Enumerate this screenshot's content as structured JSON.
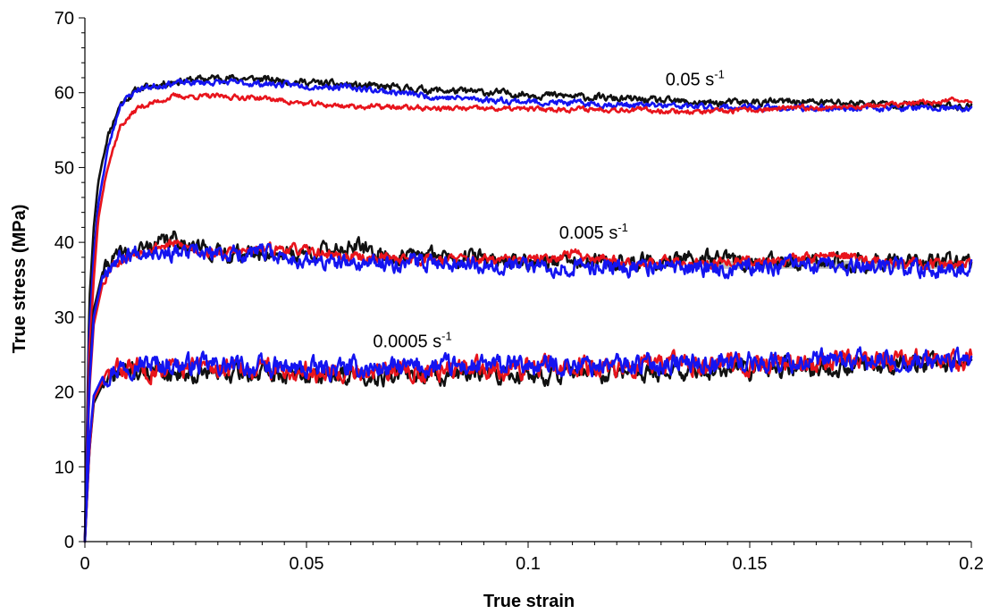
{
  "chart_data": {
    "type": "line",
    "title": "",
    "xlabel": "True strain",
    "ylabel": "True stress (MPa)",
    "xlim": [
      0,
      0.2
    ],
    "ylim": [
      0,
      70
    ],
    "x_ticks": [
      "0",
      "0.05",
      "0.1",
      "0.15",
      "0.2"
    ],
    "y_ticks": [
      "0",
      "10",
      "20",
      "30",
      "40",
      "50",
      "60",
      "70"
    ],
    "grid": false,
    "legend": "none",
    "colors": {
      "black": "#111111",
      "red": "#e8141c",
      "blue": "#1414f0",
      "gray": "#bfbfbf"
    },
    "annotations": [
      {
        "base": "0.05 s",
        "sup": "-1",
        "x": 0.131,
        "y": 61.0
      },
      {
        "base": "0.005 s",
        "sup": "-1",
        "x": 0.107,
        "y": 40.5
      },
      {
        "base": "0.0005 s",
        "sup": "-1",
        "x": 0.065,
        "y": 26.0
      }
    ],
    "groups": [
      {
        "rate": "0.05 s-1",
        "series": [
          {
            "color": "black",
            "noise": 0.35,
            "seed": 11,
            "points": [
              [
                0,
                0
              ],
              [
                0.001,
                32
              ],
              [
                0.002,
                42
              ],
              [
                0.003,
                48
              ],
              [
                0.005,
                54
              ],
              [
                0.008,
                58.5
              ],
              [
                0.012,
                60.5
              ],
              [
                0.02,
                61.5
              ],
              [
                0.03,
                62
              ],
              [
                0.04,
                61.8
              ],
              [
                0.06,
                61
              ],
              [
                0.08,
                60.3
              ],
              [
                0.1,
                59.8
              ],
              [
                0.12,
                59.2
              ],
              [
                0.14,
                58.6
              ],
              [
                0.16,
                58.8
              ],
              [
                0.18,
                58.5
              ],
              [
                0.2,
                58.2
              ]
            ]
          },
          {
            "color": "blue",
            "noise": 0.3,
            "seed": 23,
            "points": [
              [
                0,
                0
              ],
              [
                0.001,
                28
              ],
              [
                0.002,
                38
              ],
              [
                0.003,
                45
              ],
              [
                0.005,
                52
              ],
              [
                0.008,
                58.5
              ],
              [
                0.012,
                60.5
              ],
              [
                0.02,
                61.3
              ],
              [
                0.03,
                61.4
              ],
              [
                0.04,
                61.2
              ],
              [
                0.06,
                60.7
              ],
              [
                0.08,
                59.4
              ],
              [
                0.1,
                58.8
              ],
              [
                0.12,
                58.4
              ],
              [
                0.14,
                58.1
              ],
              [
                0.16,
                57.9
              ],
              [
                0.18,
                58
              ],
              [
                0.2,
                57.8
              ]
            ]
          },
          {
            "color": "red",
            "noise": 0.25,
            "seed": 37,
            "points": [
              [
                0,
                0
              ],
              [
                0.001,
                25
              ],
              [
                0.002,
                35
              ],
              [
                0.003,
                43
              ],
              [
                0.005,
                50
              ],
              [
                0.008,
                55.5
              ],
              [
                0.012,
                58
              ],
              [
                0.02,
                59.5
              ],
              [
                0.03,
                59.5
              ],
              [
                0.04,
                59.3
              ],
              [
                0.05,
                58.5
              ],
              [
                0.06,
                58.2
              ],
              [
                0.08,
                57.9
              ],
              [
                0.1,
                57.8
              ],
              [
                0.12,
                57.8
              ],
              [
                0.14,
                57.4
              ],
              [
                0.16,
                57.9
              ],
              [
                0.18,
                58.3
              ],
              [
                0.2,
                59.1
              ]
            ]
          }
        ]
      },
      {
        "rate": "0.005 s-1",
        "series": [
          {
            "color": "black",
            "noise": 0.8,
            "seed": 41,
            "points": [
              [
                0,
                0
              ],
              [
                0.001,
                22
              ],
              [
                0.002,
                31
              ],
              [
                0.004,
                36
              ],
              [
                0.006,
                37.8
              ],
              [
                0.01,
                38.5
              ],
              [
                0.015,
                39.5
              ],
              [
                0.02,
                40.5
              ],
              [
                0.025,
                39.5
              ],
              [
                0.03,
                38.5
              ],
              [
                0.05,
                38.5
              ],
              [
                0.06,
                39.5
              ],
              [
                0.07,
                38
              ],
              [
                0.08,
                38.3
              ],
              [
                0.1,
                37.5
              ],
              [
                0.12,
                37.2
              ],
              [
                0.14,
                37.8
              ],
              [
                0.16,
                37
              ],
              [
                0.18,
                37.5
              ],
              [
                0.2,
                37.2
              ]
            ]
          },
          {
            "color": "red",
            "noise": 0.5,
            "seed": 53,
            "points": [
              [
                0,
                0
              ],
              [
                0.001,
                20
              ],
              [
                0.002,
                29
              ],
              [
                0.004,
                34.5
              ],
              [
                0.006,
                37
              ],
              [
                0.01,
                38.2
              ],
              [
                0.015,
                39.3
              ],
              [
                0.02,
                39.8
              ],
              [
                0.025,
                39
              ],
              [
                0.03,
                38.5
              ],
              [
                0.045,
                39.2
              ],
              [
                0.06,
                38
              ],
              [
                0.08,
                37.8
              ],
              [
                0.1,
                37.5
              ],
              [
                0.11,
                38.5
              ],
              [
                0.12,
                37.5
              ],
              [
                0.14,
                37.2
              ],
              [
                0.16,
                37.8
              ],
              [
                0.17,
                38.4
              ],
              [
                0.18,
                37.2
              ],
              [
                0.2,
                37.1
              ]
            ]
          },
          {
            "color": "blue",
            "noise": 0.8,
            "seed": 67,
            "points": [
              [
                0,
                0
              ],
              [
                0.001,
                21
              ],
              [
                0.002,
                30
              ],
              [
                0.004,
                35.5
              ],
              [
                0.006,
                37.5
              ],
              [
                0.01,
                38.5
              ],
              [
                0.015,
                39.2
              ],
              [
                0.02,
                38.5
              ],
              [
                0.03,
                38.4
              ],
              [
                0.04,
                38.6
              ],
              [
                0.05,
                37.5
              ],
              [
                0.06,
                37
              ],
              [
                0.08,
                37.5
              ],
              [
                0.1,
                36.8
              ],
              [
                0.12,
                36.7
              ],
              [
                0.14,
                36.5
              ],
              [
                0.16,
                36.8
              ],
              [
                0.18,
                36.5
              ],
              [
                0.2,
                36.6
              ]
            ]
          }
        ]
      },
      {
        "rate": "0.0005 s-1",
        "series": [
          {
            "color": "black",
            "noise": 0.9,
            "seed": 71,
            "points": [
              [
                0,
                0
              ],
              [
                0.001,
                12
              ],
              [
                0.002,
                18.5
              ],
              [
                0.004,
                21
              ],
              [
                0.007,
                22.3
              ],
              [
                0.01,
                22.8
              ],
              [
                0.03,
                22.5
              ],
              [
                0.05,
                22.2
              ],
              [
                0.1,
                22.3
              ],
              [
                0.15,
                23
              ],
              [
                0.2,
                24
              ]
            ]
          },
          {
            "color": "red",
            "noise": 1.0,
            "seed": 83,
            "points": [
              [
                0,
                0
              ],
              [
                0.001,
                12
              ],
              [
                0.002,
                19
              ],
              [
                0.004,
                21.5
              ],
              [
                0.007,
                22.8
              ],
              [
                0.01,
                23.3
              ],
              [
                0.03,
                23.2
              ],
              [
                0.05,
                22.8
              ],
              [
                0.1,
                23.2
              ],
              [
                0.15,
                23.8
              ],
              [
                0.2,
                24.2
              ]
            ]
          },
          {
            "color": "blue",
            "noise": 1.0,
            "seed": 97,
            "points": [
              [
                0,
                0
              ],
              [
                0.001,
                13
              ],
              [
                0.002,
                19.5
              ],
              [
                0.004,
                22
              ],
              [
                0.007,
                23.2
              ],
              [
                0.01,
                23.8
              ],
              [
                0.03,
                23.5
              ],
              [
                0.05,
                23
              ],
              [
                0.1,
                23.5
              ],
              [
                0.15,
                24
              ],
              [
                0.2,
                24.2
              ]
            ]
          }
        ]
      }
    ],
    "reference_line": {
      "color": "gray",
      "style": "dashed",
      "x": [
        0.14,
        0.2
      ],
      "y": 37
    }
  }
}
